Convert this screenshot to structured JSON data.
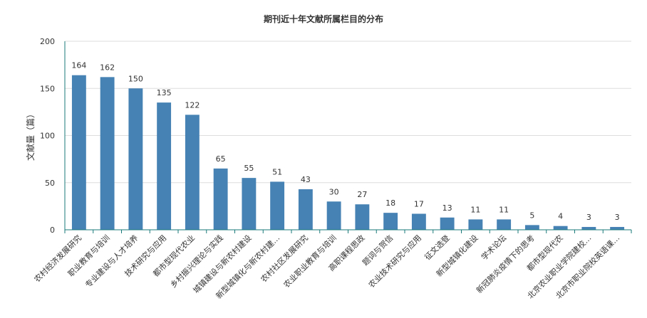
{
  "chart_data": {
    "type": "bar",
    "title": "期刊近十年文献所属栏目的分布",
    "ylabel": "文献量（篇）",
    "xlabel": "",
    "ylim": [
      0,
      200
    ],
    "yticks": [
      0,
      50,
      100,
      150,
      200
    ],
    "grid": true,
    "bar_color": "#4682b4",
    "categories": [
      "农村经济发展研究",
      "职业教育与培训",
      "专业建设与人才培养",
      "技术研究与应用",
      "都市型现代农业",
      "乡村振兴理论与实践",
      "城镇建设与新农村建设",
      "新型城镇化与新农村建…",
      "农村社区发展研究",
      "农业职业教育与培训",
      "高职课程思政",
      "题词与贺信",
      "农业技术研究与应用",
      "征文选登",
      "新型城镇化建设",
      "学术论坛",
      "新冠肺炎疫情下的思考",
      "都市型现代农",
      "北京农业职业学院建校…",
      "北京市职业院校英语课…"
    ],
    "values": [
      164,
      162,
      150,
      135,
      122,
      65,
      55,
      51,
      43,
      30,
      27,
      18,
      17,
      13,
      11,
      11,
      5,
      4,
      3,
      3
    ]
  }
}
